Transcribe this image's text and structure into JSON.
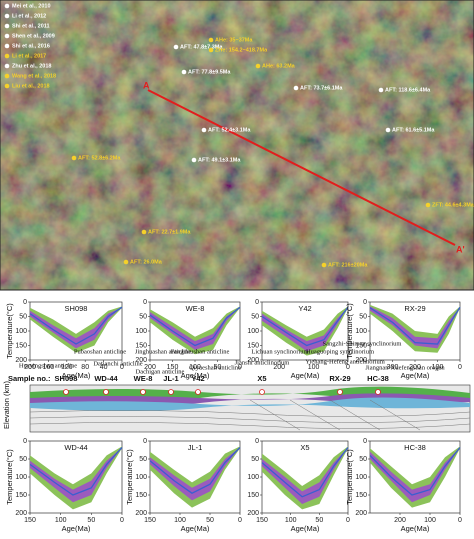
{
  "map": {
    "section_start": "A",
    "section_end": "A'",
    "legend": [
      "Mei et al., 2010",
      "Li et al., 2012",
      "Shi et al., 2011",
      "Shen et al., 2009",
      "Shi et al., 2016",
      "Li et al., 2017",
      "Zhu et al., 2018",
      "Wang et al., 2018",
      "Liu et al., 2018"
    ],
    "labels": [
      "AFT: 47.8±7.3Ma",
      "AHe: 35~37Ma",
      "ZHe: 154.2~418.7Ma",
      "AFT: 77.8±9.5Ma",
      "AHe: 63.2Ma",
      "AFT: 73.7±6.1Ma",
      "AFT: 118.6±6.4Ma",
      "AFT: 61.6±5.1Ma",
      "AFT: 52.4±3.1Ma",
      "AFT: 52.8±6.2Ma",
      "AFT: 49.1±3.1Ma",
      "AFT: 22.7±1.9Ma",
      "AFT: 26.0Ma",
      "AFT: 216±20Ma",
      "ZFT: 44.6±4.3Ma"
    ]
  },
  "panels": [
    {
      "title": "SH098",
      "xlabel": "Age(Ma)",
      "ylabel": "Temperature(°C)",
      "xlim": [
        200,
        0
      ],
      "ylim": [
        0,
        200
      ],
      "xticks": [
        200,
        160,
        120,
        80,
        40,
        0
      ],
      "yticks": [
        0,
        50,
        100,
        150,
        200
      ],
      "age": [
        200,
        150,
        100,
        60,
        30,
        0
      ],
      "acceptable_min": [
        20,
        60,
        110,
        70,
        30,
        15
      ],
      "acceptable_max": [
        60,
        120,
        175,
        150,
        70,
        20
      ],
      "good_min": [
        30,
        80,
        125,
        90,
        40,
        18
      ],
      "good_max": [
        50,
        105,
        160,
        130,
        60,
        18
      ],
      "best": [
        40,
        95,
        145,
        110,
        50,
        18
      ]
    },
    {
      "title": "WE-8",
      "xlabel": "Age(Ma)",
      "ylabel": "Temperature(°C)",
      "xlim": [
        200,
        0
      ],
      "ylim": [
        0,
        200
      ],
      "xticks": [
        200,
        150,
        100,
        50,
        0
      ],
      "yticks": [
        0,
        50,
        100,
        150,
        200
      ],
      "age": [
        200,
        150,
        100,
        60,
        30,
        0
      ],
      "acceptable_min": [
        25,
        70,
        120,
        90,
        40,
        15
      ],
      "acceptable_max": [
        70,
        130,
        180,
        165,
        80,
        20
      ],
      "good_min": [
        35,
        85,
        135,
        110,
        50,
        18
      ],
      "good_max": [
        55,
        110,
        165,
        145,
        65,
        18
      ],
      "best": [
        45,
        100,
        150,
        125,
        55,
        18
      ]
    },
    {
      "title": "Y42",
      "xlabel": "Age(Ma)",
      "ylabel": "Temperature(°C)",
      "xlim": [
        250,
        0
      ],
      "ylim": [
        0,
        200
      ],
      "xticks": [
        200,
        100,
        0
      ],
      "yticks": [
        0,
        50,
        100,
        150,
        200
      ],
      "age": [
        250,
        180,
        120,
        70,
        30,
        0
      ],
      "acceptable_min": [
        30,
        80,
        120,
        95,
        40,
        15
      ],
      "acceptable_max": [
        80,
        140,
        185,
        170,
        90,
        20
      ],
      "good_min": [
        40,
        95,
        135,
        115,
        55,
        18
      ],
      "good_max": [
        65,
        120,
        170,
        150,
        75,
        18
      ],
      "best": [
        50,
        105,
        150,
        130,
        65,
        18
      ]
    },
    {
      "title": "RX-29",
      "xlabel": "Age(Ma)",
      "ylabel": "Temperature(°C)",
      "xlim": [
        400,
        0
      ],
      "ylim": [
        0,
        200
      ],
      "xticks": [
        300,
        200,
        100,
        0
      ],
      "yticks": [
        0,
        50,
        100,
        150,
        200
      ],
      "age": [
        400,
        300,
        200,
        100,
        50,
        0
      ],
      "acceptable_min": [
        10,
        40,
        100,
        110,
        50,
        15
      ],
      "acceptable_max": [
        40,
        100,
        170,
        175,
        110,
        20
      ],
      "good_min": [
        15,
        55,
        120,
        125,
        65,
        18
      ],
      "good_max": [
        30,
        80,
        150,
        160,
        90,
        18
      ],
      "best": [
        20,
        70,
        140,
        145,
        80,
        18
      ]
    },
    {
      "title": "WD-44",
      "xlabel": "Age(Ma)",
      "ylabel": "Temperature(°C)",
      "xlim": [
        150,
        0
      ],
      "ylim": [
        0,
        200
      ],
      "xticks": [
        150,
        100,
        50,
        0
      ],
      "yticks": [
        0,
        50,
        100,
        150,
        200
      ],
      "age": [
        150,
        110,
        80,
        50,
        25,
        0
      ],
      "acceptable_min": [
        40,
        90,
        120,
        90,
        40,
        15
      ],
      "acceptable_max": [
        90,
        150,
        190,
        170,
        90,
        20
      ],
      "good_min": [
        55,
        105,
        135,
        110,
        55,
        18
      ],
      "good_max": [
        75,
        130,
        170,
        150,
        75,
        18
      ],
      "best": [
        65,
        115,
        150,
        130,
        65,
        18
      ]
    },
    {
      "title": "JL-1",
      "xlabel": "Age(Ma)",
      "ylabel": "Temperature(°C)",
      "xlim": [
        150,
        0
      ],
      "ylim": [
        0,
        200
      ],
      "xticks": [
        150,
        100,
        50,
        0
      ],
      "yticks": [
        0,
        50,
        100,
        150,
        200
      ],
      "age": [
        150,
        110,
        80,
        50,
        25,
        0
      ],
      "acceptable_min": [
        30,
        80,
        115,
        85,
        35,
        15
      ],
      "acceptable_max": [
        80,
        145,
        185,
        160,
        80,
        20
      ],
      "good_min": [
        45,
        95,
        130,
        105,
        50,
        18
      ],
      "good_max": [
        65,
        125,
        165,
        140,
        70,
        18
      ],
      "best": [
        55,
        110,
        145,
        120,
        60,
        18
      ]
    },
    {
      "title": "X5",
      "xlabel": "Age(Ma)",
      "ylabel": "Temperature(°C)",
      "xlim": [
        150,
        0
      ],
      "ylim": [
        0,
        200
      ],
      "xticks": [
        150,
        100,
        50,
        0
      ],
      "yticks": [
        0,
        50,
        100,
        150,
        200
      ],
      "age": [
        150,
        110,
        80,
        50,
        25,
        0
      ],
      "acceptable_min": [
        35,
        85,
        125,
        95,
        45,
        15
      ],
      "acceptable_max": [
        85,
        150,
        190,
        175,
        95,
        20
      ],
      "good_min": [
        50,
        100,
        140,
        115,
        60,
        18
      ],
      "good_max": [
        70,
        130,
        175,
        155,
        80,
        18
      ],
      "best": [
        60,
        115,
        155,
        135,
        70,
        18
      ]
    },
    {
      "title": "HC-38",
      "xlabel": "Age(Ma)",
      "ylabel": "Temperature(°C)",
      "xlim": [
        300,
        0
      ],
      "ylim": [
        0,
        200
      ],
      "xticks": [
        200,
        100,
        0
      ],
      "yticks": [
        0,
        50,
        100,
        150,
        200
      ],
      "age": [
        300,
        230,
        160,
        100,
        50,
        0
      ],
      "acceptable_min": [
        20,
        70,
        120,
        100,
        45,
        15
      ],
      "acceptable_max": [
        60,
        130,
        185,
        170,
        100,
        20
      ],
      "good_min": [
        30,
        85,
        135,
        120,
        60,
        18
      ],
      "good_max": [
        50,
        110,
        170,
        150,
        80,
        18
      ],
      "best": [
        40,
        100,
        150,
        135,
        70,
        18
      ]
    }
  ],
  "section": {
    "ylabel": "Elevation (km)",
    "sample_label": "Sample no.:",
    "samples": [
      "SH098",
      "WD-44",
      "WE-8",
      "JL-1",
      "Y42",
      "X5",
      "RX-29",
      "HC-38"
    ],
    "structures": [
      "Huayingshan anticline",
      "Pubaoshan anticline",
      "Datianchi anticline",
      "Jinghuashan anticline",
      "Fangdoushan anticline",
      "Dachigan anticline",
      "Qiyueshan anticline",
      "Lichuan synclinorium",
      "Jianshi anticlinorium",
      "Huaguoping synclinorium",
      "Yichang-Hefeng anticlinorium",
      "Sangzhi-Shimen synclinorium",
      "Jiangnan-Xuefengshan orogen"
    ]
  }
}
